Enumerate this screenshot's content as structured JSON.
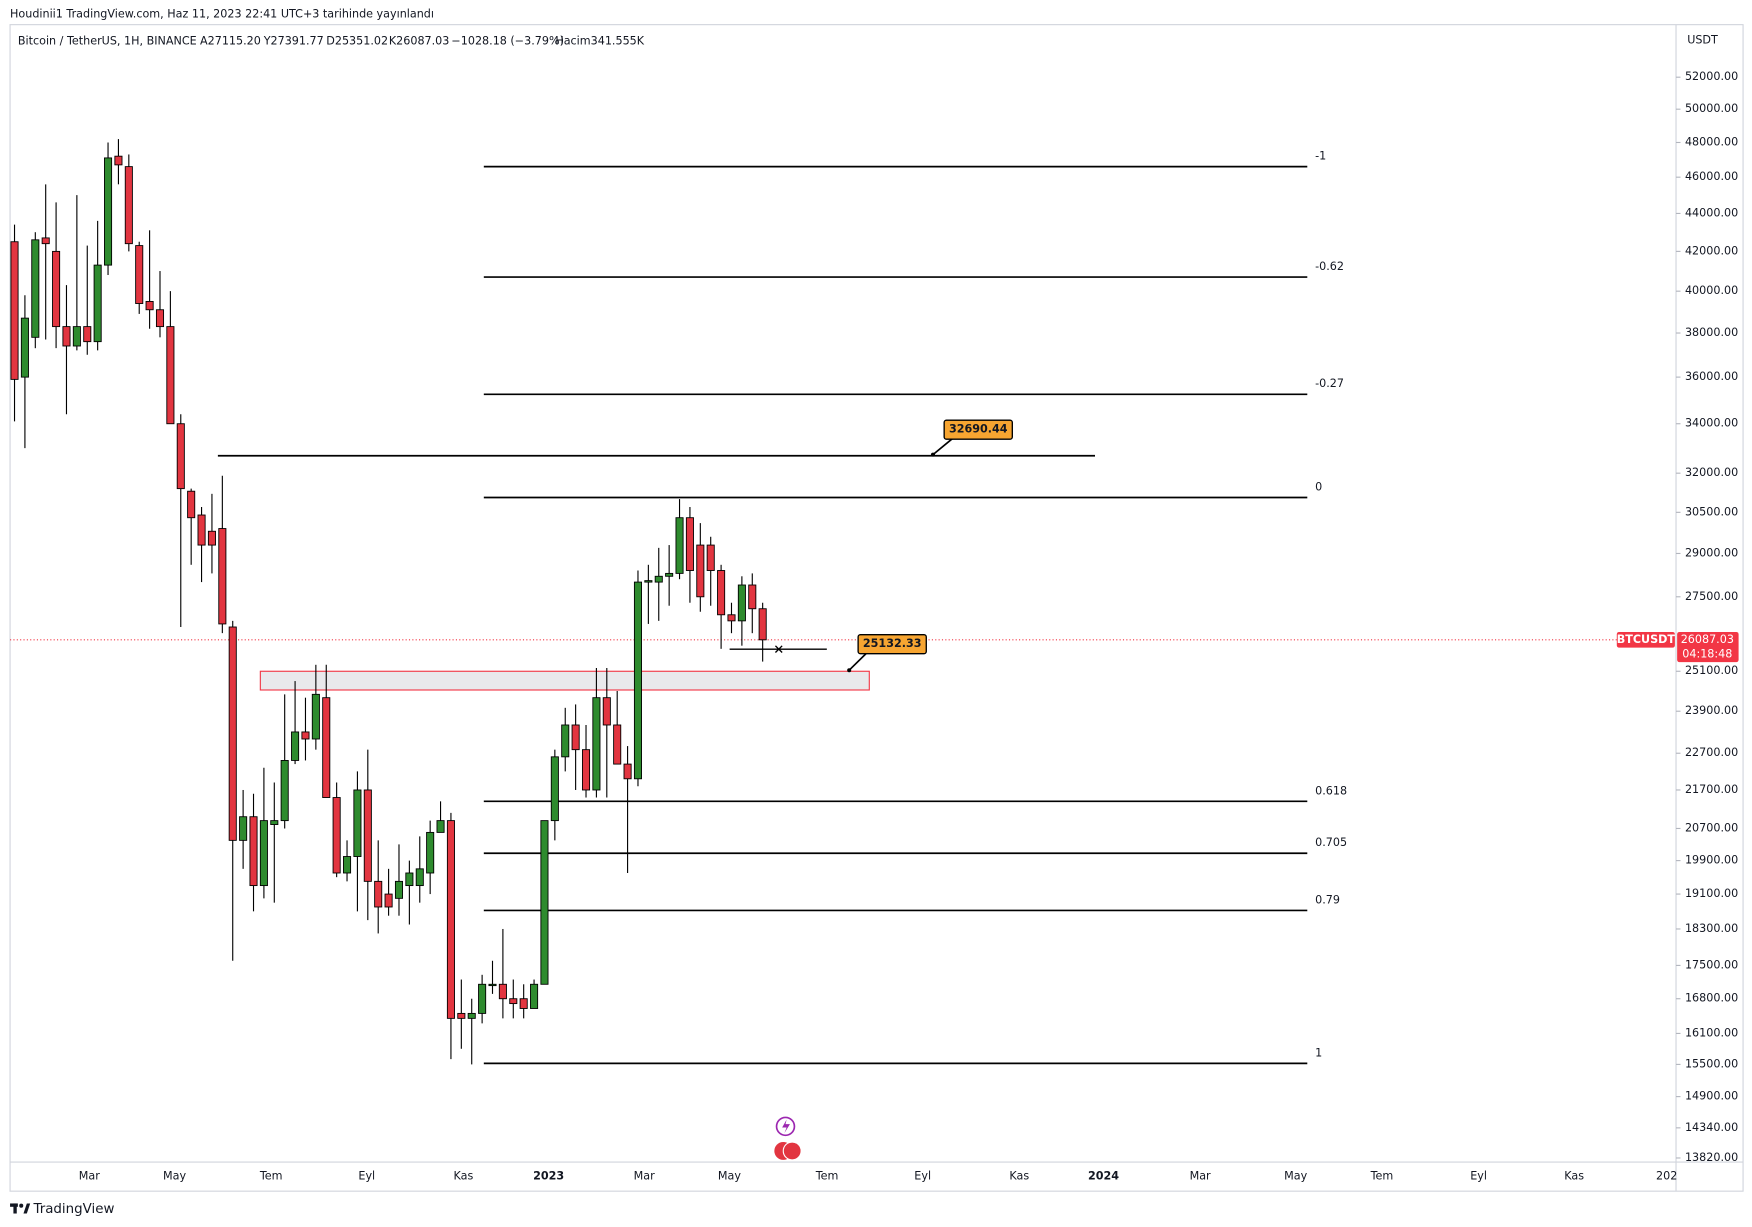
{
  "header": {
    "published": "Houdinii1 TradingView.com, Haz 11, 2023 22:41 UTC+3 tarihinde yayınlandı",
    "symbol": [
      "Bitcoin / TetherUS, 1H, BINANCE",
      "A27115.20",
      "Y27391.77",
      "D25351.02",
      "K26087.03",
      "−1028.18 (−3.79%)",
      "Hacim341.555K"
    ],
    "currency": "USDT",
    "footer": "TradingView"
  },
  "chart_data": {
    "type": "candlestick",
    "log_scale": true,
    "up_color": "#2e8b2e",
    "down_color": "#e23540",
    "open": [
      42500,
      36000,
      37800,
      42700,
      42000,
      38300,
      37400,
      38300,
      37600,
      41300,
      47200,
      46600,
      42300,
      39500,
      39100,
      38300,
      34000,
      31300,
      30400,
      29800,
      29900,
      26500,
      20400,
      21000,
      19300,
      20800,
      20900,
      22500,
      23300,
      23100,
      24300,
      21500,
      19600,
      20000,
      21700,
      19400,
      19100,
      19000,
      19300,
      19300,
      19600,
      20600,
      20900,
      16500,
      16400,
      16500,
      17100,
      17100,
      16800,
      16800,
      16600,
      17100,
      20900,
      22600,
      23500,
      22800,
      21700,
      24300,
      23500,
      22400,
      22000,
      28000,
      28000,
      28200,
      28300,
      30300,
      29300,
      29300,
      28400,
      26900,
      26700,
      27900,
      27100
    ],
    "high": [
      43400,
      39800,
      43000,
      45600,
      44600,
      40300,
      45000,
      42300,
      43600,
      48000,
      48200,
      47300,
      42500,
      43100,
      41000,
      40000,
      34400,
      31400,
      30700,
      31200,
      31900,
      26700,
      21700,
      21600,
      22300,
      21900,
      24400,
      24800,
      24300,
      25300,
      25300,
      21900,
      20400,
      22200,
      22800,
      20400,
      19700,
      20300,
      19900,
      20500,
      20900,
      21400,
      21100,
      17200,
      16800,
      17300,
      17600,
      18300,
      17200,
      17100,
      17200,
      20900,
      22800,
      24000,
      24100,
      23500,
      25200,
      25200,
      24500,
      22900,
      28400,
      28600,
      29200,
      29300,
      31000,
      30700,
      30100,
      29600,
      28600,
      27300,
      28200,
      28300,
      27300
    ],
    "low": [
      34100,
      33000,
      37300,
      37700,
      37300,
      34400,
      37200,
      37000,
      37200,
      40800,
      45600,
      42000,
      38900,
      38200,
      37800,
      34000,
      26500,
      28600,
      28000,
      28300,
      26300,
      17600,
      19700,
      18700,
      19000,
      18900,
      20700,
      22400,
      22500,
      22800,
      21500,
      19500,
      19400,
      18700,
      18500,
      18200,
      18600,
      18600,
      18400,
      18900,
      19100,
      20600,
      15600,
      15800,
      15500,
      16300,
      16900,
      16400,
      16400,
      16400,
      16600,
      17100,
      20400,
      22200,
      21700,
      21500,
      21500,
      21500,
      22400,
      19600,
      21800,
      26600,
      26700,
      27200,
      28100,
      27300,
      27000,
      27200,
      25800,
      26300,
      25900,
      26300,
      25400
    ],
    "close": [
      35900,
      38700,
      42600,
      42400,
      38300,
      37400,
      38300,
      37600,
      41300,
      47100,
      46700,
      42400,
      39400,
      39100,
      38300,
      34000,
      31400,
      30300,
      29300,
      29300,
      26600,
      20400,
      21000,
      19300,
      20900,
      20900,
      22500,
      23300,
      23100,
      24400,
      21500,
      19600,
      20000,
      21700,
      19400,
      18800,
      18800,
      19400,
      19600,
      19700,
      20600,
      20900,
      16400,
      16400,
      16500,
      17100,
      17100,
      16800,
      16700,
      16600,
      17100,
      20900,
      22600,
      23500,
      22800,
      21700,
      24300,
      23500,
      22400,
      22000,
      28000,
      28050,
      28200,
      28300,
      30300,
      28400,
      27500,
      28400,
      26900,
      26700,
      27900,
      27100,
      26087.03
    ],
    "xlim": [
      -0.43,
      159.9
    ],
    "xticks": [
      {
        "value": 7.2,
        "label": "Mar"
      },
      {
        "value": 15.4,
        "label": "May"
      },
      {
        "value": 24.7,
        "label": "Tem"
      },
      {
        "value": 33.9,
        "label": "Eyl"
      },
      {
        "value": 43.2,
        "label": "Kas"
      },
      {
        "value": 51.4,
        "label": "2023"
      },
      {
        "value": 60.6,
        "label": "Mar"
      },
      {
        "value": 68.8,
        "label": "May"
      },
      {
        "value": 78.2,
        "label": "Tem"
      },
      {
        "value": 87.4,
        "label": "Eyl"
      },
      {
        "value": 96.7,
        "label": "Kas"
      },
      {
        "value": 104.8,
        "label": "2024"
      },
      {
        "value": 114.1,
        "label": "Mar"
      },
      {
        "value": 123.3,
        "label": "May"
      },
      {
        "value": 131.6,
        "label": "Tem"
      },
      {
        "value": 140.9,
        "label": "Eyl"
      },
      {
        "value": 150.1,
        "label": "Kas"
      },
      {
        "value": 159.0,
        "label": "202"
      }
    ],
    "ylim": [
      13750,
      55460
    ],
    "yticks": [
      {
        "value": 52000,
        "label": "52000.00"
      },
      {
        "value": 50000,
        "label": "50000.00"
      },
      {
        "value": 48000,
        "label": "48000.00"
      },
      {
        "value": 46000,
        "label": "46000.00"
      },
      {
        "value": 44000,
        "label": "44000.00"
      },
      {
        "value": 42000,
        "label": "42000.00"
      },
      {
        "value": 40000,
        "label": "40000.00"
      },
      {
        "value": 38000,
        "label": "38000.00"
      },
      {
        "value": 36000,
        "label": "36000.00"
      },
      {
        "value": 34000,
        "label": "34000.00"
      },
      {
        "value": 32000,
        "label": "32000.00"
      },
      {
        "value": 30500,
        "label": "30500.00"
      },
      {
        "value": 29000,
        "label": "29000.00"
      },
      {
        "value": 27500,
        "label": "27500.00"
      },
      {
        "value": 25100,
        "label": "25100.00"
      },
      {
        "value": 23900,
        "label": "23900.00"
      },
      {
        "value": 22700,
        "label": "22700.00"
      },
      {
        "value": 21700,
        "label": "21700.00"
      },
      {
        "value": 20700,
        "label": "20700.00"
      },
      {
        "value": 19900,
        "label": "19900.00"
      },
      {
        "value": 19100,
        "label": "19100.00"
      },
      {
        "value": 18300,
        "label": "18300.00"
      },
      {
        "value": 17500,
        "label": "17500.00"
      },
      {
        "value": 16800,
        "label": "16800.00"
      },
      {
        "value": 16100,
        "label": "16100.00"
      },
      {
        "value": 15500,
        "label": "15500.00"
      },
      {
        "value": 14900,
        "label": "14900.00"
      },
      {
        "value": 14340,
        "label": "14340.00"
      },
      {
        "value": 13820,
        "label": "13820.00"
      }
    ],
    "fib_levels": [
      {
        "label": "-1",
        "price": 46600
      },
      {
        "label": "-0.62",
        "price": 40700
      },
      {
        "label": "-0.27",
        "price": 35250
      },
      {
        "label": "0",
        "price": 31060
      },
      {
        "label": "0.618",
        "price": 21400
      },
      {
        "label": "0.705",
        "price": 20080
      },
      {
        "label": "0.79",
        "price": 18720
      },
      {
        "label": "1",
        "price": 15520
      }
    ],
    "resistance_price": 32690.44,
    "support_price": 25132.33,
    "low_line_price": 25790,
    "zone": {
      "top": 25100,
      "bottom": 24530
    },
    "last_price": 26087.03,
    "symbol_tag": "BTCUSDT",
    "countdown": "04:18:48"
  }
}
